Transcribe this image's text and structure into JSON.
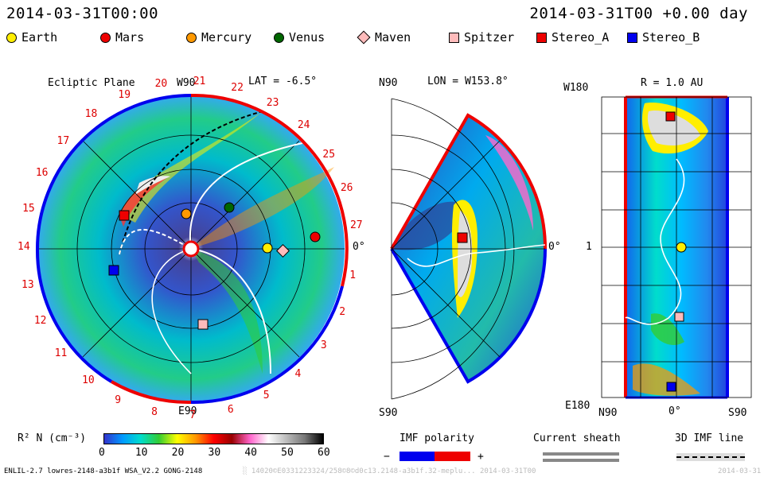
{
  "header": {
    "timestamp": "2014-03-31T00:00",
    "offset": "2014-03-31T00 +0.00 day"
  },
  "legend": [
    {
      "name": "Earth",
      "shape": "circle",
      "color": "#ffee00"
    },
    {
      "name": "Mars",
      "shape": "circle",
      "color": "#ee0000"
    },
    {
      "name": "Mercury",
      "shape": "circle",
      "color": "#ff9900"
    },
    {
      "name": "Venus",
      "shape": "circle",
      "color": "#006600"
    },
    {
      "name": "Maven",
      "shape": "diamond",
      "color": "#ffbbbb"
    },
    {
      "name": "Spitzer",
      "shape": "square",
      "color": "#ffbbbb"
    },
    {
      "name": "Stereo_A",
      "shape": "square",
      "color": "#ee0000"
    },
    {
      "name": "Stereo_B",
      "shape": "square",
      "color": "#0000ee"
    }
  ],
  "panels": {
    "ecliptic": {
      "title": "Ecliptic Plane",
      "top_label": "W90",
      "lat_label": "LAT = -6.5°",
      "bottom_label": "E90",
      "right_label": "0°",
      "carrington_numbers": [
        "1",
        "2",
        "3",
        "4",
        "5",
        "6",
        "7",
        "8",
        "9",
        "10",
        "11",
        "12",
        "13",
        "14",
        "15",
        "16",
        "17",
        "18",
        "19",
        "20",
        "21",
        "22",
        "23",
        "24",
        "25",
        "26",
        "27"
      ]
    },
    "meridional": {
      "top_left": "N90",
      "lon_label": "LON = W153.8°",
      "bottom_left": "S90",
      "right_label": "0°"
    },
    "radial": {
      "r_label": "R = 1.0 AU",
      "top_left": "W180",
      "mid_left": "1",
      "bottom_left": "E180",
      "x_labels": [
        "N90",
        "0°",
        "S90"
      ]
    }
  },
  "colorbar": {
    "label": "R² N (cm⁻³)",
    "ticks": [
      "0",
      "10",
      "20",
      "30",
      "40",
      "50",
      "60"
    ],
    "colors": [
      "#3333cc",
      "#0099ff",
      "#00ddcc",
      "#33cc33",
      "#ffff00",
      "#ff9900",
      "#ff0000",
      "#990000",
      "#ff66cc",
      "#ffffff",
      "#bbbbbb",
      "#777777",
      "#000000"
    ]
  },
  "imf_legend": {
    "title": "IMF polarity",
    "minus": "−",
    "plus": "+",
    "neg_color": "#0000ee",
    "pos_color": "#ee0000"
  },
  "current_sheath": {
    "title": "Current sheath"
  },
  "imf_line": {
    "title": "3D IMF line"
  },
  "footer": {
    "model": "ENLIL-2.7 lowres-2148-a3b1f WSA_V2.2 GONG-2148",
    "faint": "░ 14020©E0331223324/258©8©d0c13.2148-a3b1f.32-meplu... 2014-03-31T00",
    "faint_right": "2014-03-31"
  }
}
